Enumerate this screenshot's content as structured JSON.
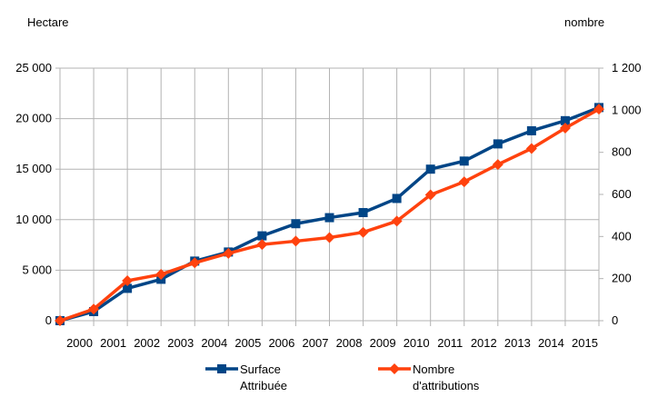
{
  "chart_data": {
    "type": "line",
    "y_left_label": "Hectare",
    "y_right_label": "nombre",
    "x": [
      "",
      "2000",
      "2001",
      "2002",
      "2003",
      "2004",
      "2005",
      "2006",
      "2007",
      "2008",
      "2009",
      "2010",
      "2011",
      "2012",
      "2013",
      "2014",
      "2015"
    ],
    "y_left": {
      "min": 0,
      "max": 25000,
      "ticks": [
        "0",
        "5 000",
        "10 000",
        "15 000",
        "20 000",
        "25 000"
      ]
    },
    "y_right": {
      "min": 0,
      "max": 1200,
      "ticks": [
        "0",
        "200",
        "400",
        "600",
        "800",
        "1 000",
        "1 200"
      ]
    },
    "series": [
      {
        "name": [
          "Surface",
          "Attribuée"
        ],
        "axis": "left",
        "color": "#004586",
        "marker": "square",
        "values": [
          0,
          900,
          3200,
          4100,
          5900,
          6800,
          8400,
          9600,
          10200,
          10700,
          12100,
          15000,
          15800,
          17500,
          18800,
          19800,
          21100
        ]
      },
      {
        "name": [
          "Nombre",
          "d'attributions"
        ],
        "axis": "right",
        "color": "#ff420e",
        "marker": "diamond",
        "values": [
          0,
          55,
          190,
          220,
          275,
          320,
          362,
          378,
          395,
          420,
          473,
          598,
          660,
          742,
          818,
          915,
          1005
        ]
      }
    ],
    "grid": true,
    "legend": "bottom"
  }
}
